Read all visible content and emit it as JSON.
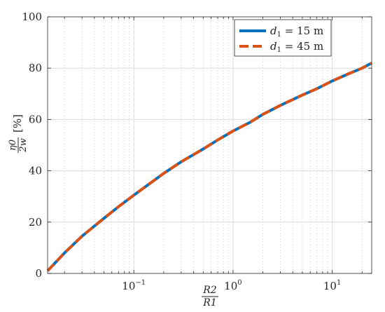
{
  "chart_data": {
    "type": "line",
    "x_scale": "log",
    "xlim": [
      0.0135,
      25
    ],
    "ylim": [
      0,
      100
    ],
    "grid": true,
    "legend_position": "top-right",
    "x_ticks": [
      {
        "value": 0.1,
        "base": "10",
        "exp": "−1"
      },
      {
        "value": 1,
        "base": "10",
        "exp": "0"
      },
      {
        "value": 10,
        "base": "10",
        "exp": "1"
      }
    ],
    "y_ticks": [
      "0",
      "20",
      "40",
      "60",
      "80",
      "100"
    ],
    "xlabel": {
      "numerator": "R2",
      "denominator": "R1"
    },
    "ylabel": {
      "numerator": "η0",
      "denominator": "2w",
      "unit": "[%]"
    },
    "series": [
      {
        "name": "d1 = 15 m",
        "label_var": "d",
        "label_sub": "1",
        "label_rest": " = 15 m",
        "color": "#0072BD",
        "style": "solid",
        "x": [
          0.0135,
          0.02,
          0.03,
          0.05,
          0.07,
          0.1,
          0.15,
          0.2,
          0.3,
          0.5,
          0.7,
          1,
          1.5,
          2,
          3,
          5,
          7,
          10,
          15,
          20,
          25
        ],
        "y": [
          1,
          8,
          14.5,
          21.5,
          26,
          30.5,
          35.5,
          39,
          43.5,
          48.5,
          52,
          55.5,
          59,
          62,
          65.5,
          69.5,
          72,
          75,
          78,
          80,
          82
        ]
      },
      {
        "name": "d1 = 45 m",
        "label_var": "d",
        "label_sub": "1",
        "label_rest": " = 45 m",
        "color": "#D95319",
        "style": "dashed",
        "x": [
          0.0135,
          0.02,
          0.03,
          0.05,
          0.07,
          0.1,
          0.15,
          0.2,
          0.3,
          0.5,
          0.7,
          1,
          1.5,
          2,
          3,
          5,
          7,
          10,
          15,
          20,
          25
        ],
        "y": [
          1,
          8,
          14.5,
          21.5,
          26,
          30.5,
          35.5,
          39,
          43.5,
          48.5,
          52,
          55.5,
          59,
          62,
          65.5,
          69.5,
          72,
          75,
          78,
          80,
          82
        ]
      }
    ]
  }
}
